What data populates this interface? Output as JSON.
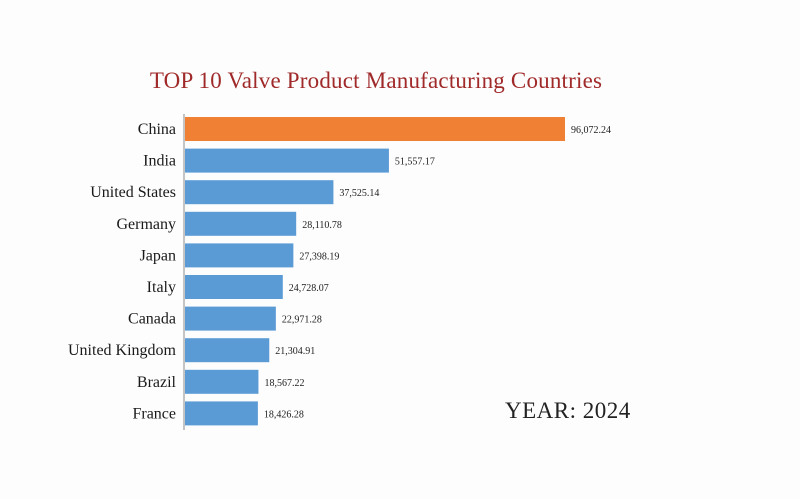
{
  "chart_data": {
    "type": "bar",
    "orientation": "horizontal",
    "title": "TOP 10 Valve Product Manufacturing Countries",
    "categories": [
      "China",
      "India",
      "United States",
      "Germany",
      "Japan",
      "Italy",
      "Canada",
      "United Kingdom",
      "Brazil",
      "France"
    ],
    "values": [
      96072.24,
      51557.17,
      37525.14,
      28110.78,
      27398.19,
      24728.07,
      22971.28,
      21304.91,
      18567.22,
      18426.28
    ],
    "value_labels": [
      "96,072.24",
      "51,557.17",
      "37,525.14",
      "28,110.78",
      "27,398.19",
      "24,728.07",
      "22,971.28",
      "21,304.91",
      "18,567.22",
      "18,426.28"
    ],
    "xlim": [
      0,
      96072.24
    ],
    "highlight_category": "China",
    "colors": {
      "highlight": "#f08033",
      "default": "#5b9bd5",
      "title": "#a02a2a"
    },
    "grid": false,
    "legend": "none",
    "annotation": "YEAR: 2024"
  }
}
